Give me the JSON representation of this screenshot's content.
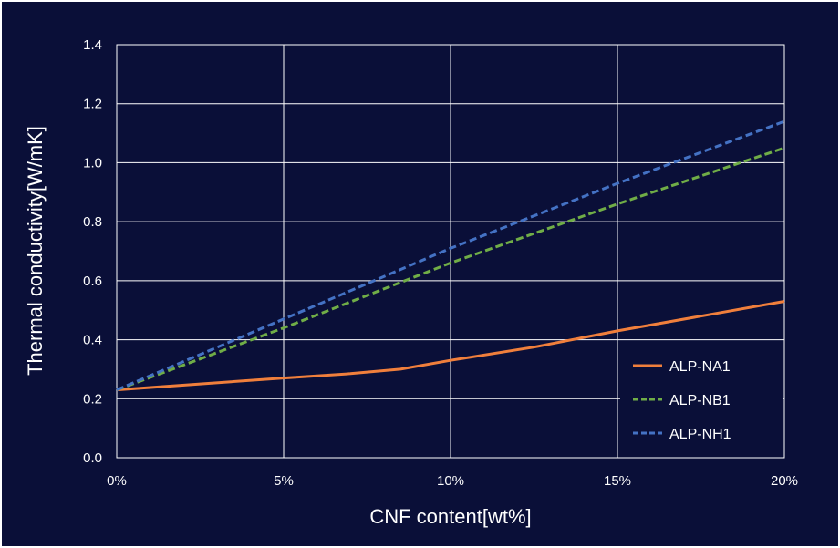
{
  "chart_data": {
    "type": "line",
    "xlabel": "CNF content[wt%]",
    "ylabel": "Thermal conductivity[W/mK]",
    "xlim": [
      0,
      20
    ],
    "ylim": [
      0,
      1.4
    ],
    "x_ticks": [
      {
        "value": 0,
        "label": "0%"
      },
      {
        "value": 5,
        "label": "5%"
      },
      {
        "value": 10,
        "label": "10%"
      },
      {
        "value": 15,
        "label": "15%"
      },
      {
        "value": 20,
        "label": "20%"
      }
    ],
    "y_ticks": [
      {
        "value": 0,
        "label": "0.0"
      },
      {
        "value": 0.2,
        "label": "0.2"
      },
      {
        "value": 0.4,
        "label": "0.4"
      },
      {
        "value": 0.6,
        "label": "0.6"
      },
      {
        "value": 0.8,
        "label": "0.8"
      },
      {
        "value": 1.0,
        "label": "1.0"
      },
      {
        "value": 1.2,
        "label": "1.2"
      },
      {
        "value": 1.4,
        "label": "1.4"
      }
    ],
    "grid": true,
    "legend_position": "bottom-right",
    "series": [
      {
        "name": "ALP-NA1",
        "color": "#f07f3c",
        "dash": "solid",
        "points": [
          [
            0,
            0.23
          ],
          [
            2.5,
            0.25
          ],
          [
            5,
            0.27
          ],
          [
            7,
            0.285
          ],
          [
            8.5,
            0.3
          ],
          [
            10,
            0.33
          ],
          [
            12.5,
            0.375
          ],
          [
            15,
            0.43
          ],
          [
            17.5,
            0.48
          ],
          [
            20,
            0.53
          ]
        ]
      },
      {
        "name": "ALP-NB1",
        "color": "#70ad47",
        "dash": "dashed",
        "points": [
          [
            0,
            0.23
          ],
          [
            5,
            0.44
          ],
          [
            10,
            0.66
          ],
          [
            15,
            0.86
          ],
          [
            20,
            1.05
          ]
        ]
      },
      {
        "name": "ALP-NH1",
        "color": "#4472c4",
        "dash": "dashed",
        "points": [
          [
            0,
            0.23
          ],
          [
            5,
            0.47
          ],
          [
            10,
            0.71
          ],
          [
            15,
            0.93
          ],
          [
            20,
            1.14
          ]
        ]
      }
    ]
  }
}
